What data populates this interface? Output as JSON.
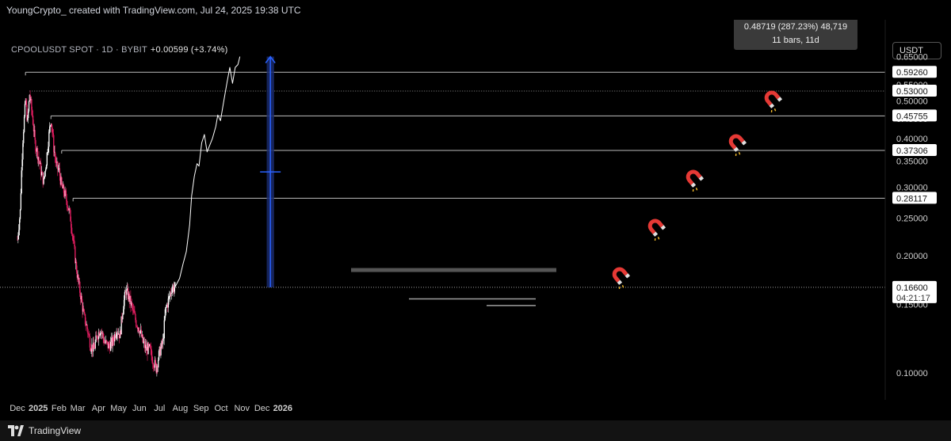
{
  "credit": "YoungCrypto_ created with TradingView.com, Jul 24, 2025 19:38 UTC",
  "symbol": "CPOOLUSDT SPOT · 1D · BYBIT",
  "change": "+0.00599 (+3.74%)",
  "currency": "USDT",
  "footer_brand": "TradingView",
  "measure": {
    "line1": "0.48719 (287.23%) 48,719",
    "line2": "11 bars, 11d"
  },
  "colors": {
    "background": "#000000",
    "candle": "#e91e63",
    "level_line": "#bdbdbd",
    "measure_fill": "#1a2a6c",
    "measure_line": "#2962ff",
    "projection": "#ffffff",
    "magnet": "#e53935"
  },
  "chart_data": {
    "type": "line",
    "x_axis_labels": [
      "Dec",
      "2025",
      "Feb",
      "Mar",
      "Apr",
      "May",
      "Jun",
      "Jul",
      "Aug",
      "Sep",
      "Oct",
      "Nov",
      "Dec",
      "2026"
    ],
    "y_axis_labels": [
      "0.65000",
      "0.60000",
      "0.55000",
      "0.50000",
      "0.45000",
      "0.40000",
      "0.35000",
      "0.30000",
      "0.25000",
      "0.20000",
      "0.15000",
      "0.10000"
    ],
    "y_scale": "log",
    "ylim": [
      0.088,
      0.72
    ],
    "grid": false,
    "levels": [
      {
        "value": 0.5926,
        "label": "0.59260",
        "start": "2024-12-13"
      },
      {
        "value": 0.53,
        "label": "0.53000",
        "start": "2024-12-19",
        "dotted": true
      },
      {
        "value": 0.45755,
        "label": "0.45755",
        "start": "2025-01-20"
      },
      {
        "value": 0.37306,
        "label": "0.37306",
        "start": "2025-02-05"
      },
      {
        "value": 0.28117,
        "label": "0.28117",
        "start": "2025-02-22"
      }
    ],
    "current_price": {
      "value": 0.166,
      "label": "0.16600",
      "countdown": "04:21:17"
    },
    "price_series": {
      "name": "CPOOLUSDT",
      "x": [
        "2024-12-01",
        "2024-12-05",
        "2024-12-09",
        "2024-12-13",
        "2024-12-16",
        "2024-12-19",
        "2024-12-23",
        "2024-12-27",
        "2025-01-01",
        "2025-01-05",
        "2025-01-09",
        "2025-01-13",
        "2025-01-17",
        "2025-01-20",
        "2025-01-24",
        "2025-01-28",
        "2025-02-01",
        "2025-02-05",
        "2025-02-09",
        "2025-02-14",
        "2025-02-18",
        "2025-02-22",
        "2025-02-26",
        "2025-03-02",
        "2025-03-06",
        "2025-03-10",
        "2025-03-15",
        "2025-03-20",
        "2025-03-25",
        "2025-03-30",
        "2025-04-04",
        "2025-04-10",
        "2025-04-16",
        "2025-04-22",
        "2025-04-28",
        "2025-05-03",
        "2025-05-08",
        "2025-05-12",
        "2025-05-17",
        "2025-05-22",
        "2025-05-27",
        "2025-06-01",
        "2025-06-06",
        "2025-06-11",
        "2025-06-16",
        "2025-06-21",
        "2025-06-26",
        "2025-07-01",
        "2025-07-06",
        "2025-07-10",
        "2025-07-15",
        "2025-07-19",
        "2025-07-24"
      ],
      "close": [
        0.22,
        0.26,
        0.4,
        0.5,
        0.44,
        0.52,
        0.46,
        0.39,
        0.36,
        0.33,
        0.31,
        0.35,
        0.41,
        0.45,
        0.38,
        0.34,
        0.33,
        0.3,
        0.29,
        0.27,
        0.25,
        0.22,
        0.19,
        0.17,
        0.155,
        0.14,
        0.13,
        0.118,
        0.115,
        0.125,
        0.13,
        0.12,
        0.117,
        0.12,
        0.13,
        0.125,
        0.15,
        0.163,
        0.155,
        0.145,
        0.135,
        0.13,
        0.12,
        0.115,
        0.115,
        0.108,
        0.103,
        0.113,
        0.12,
        0.145,
        0.155,
        0.165,
        0.166
      ]
    },
    "projection_series": {
      "x": [
        "2025-07-24",
        "2025-07-31",
        "2025-08-05",
        "2025-08-10",
        "2025-08-15",
        "2025-08-18",
        "2025-08-22",
        "2025-08-26",
        "2025-08-29",
        "2025-09-02",
        "2025-09-06",
        "2025-09-10",
        "2025-09-14",
        "2025-09-18",
        "2025-09-23",
        "2025-09-26",
        "2025-09-30",
        "2025-10-05",
        "2025-10-10",
        "2025-10-14",
        "2025-10-18",
        "2025-10-22",
        "2025-10-26",
        "2025-10-29"
      ],
      "value": [
        0.166,
        0.175,
        0.19,
        0.205,
        0.24,
        0.285,
        0.32,
        0.345,
        0.34,
        0.39,
        0.41,
        0.37,
        0.385,
        0.4,
        0.43,
        0.46,
        0.445,
        0.5,
        0.56,
        0.61,
        0.555,
        0.61,
        0.62,
        0.65
      ]
    },
    "measure_range": {
      "from": 0.166,
      "to": 0.65,
      "x_from": "2025-12-08",
      "x_to": "2025-12-19"
    }
  }
}
